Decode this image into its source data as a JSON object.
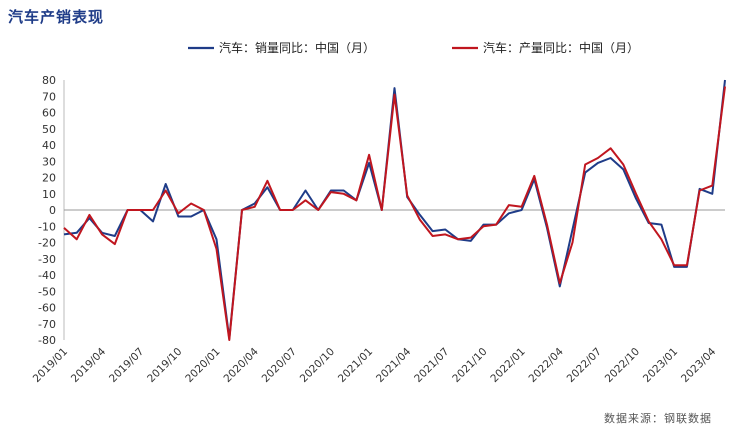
{
  "title": "汽车产销表现",
  "source": "数据来源：钢联数据",
  "colors": {
    "sales": "#1f3c88",
    "production": "#c0161f"
  },
  "chart_data": {
    "type": "line",
    "title": "汽车产销表现",
    "ylim": [
      -80,
      80
    ],
    "yticks": [
      80,
      70,
      60,
      50,
      40,
      30,
      20,
      10,
      0,
      -10,
      -20,
      -30,
      -40,
      -50,
      -60,
      -70,
      -80
    ],
    "xlabels": [
      "2019/01",
      "2019/04",
      "2019/07",
      "2019/10",
      "2020/01",
      "2020/04",
      "2020/07",
      "2020/10",
      "2021/01",
      "2021/04",
      "2021/07",
      "2021/10",
      "2022/01",
      "2022/04",
      "2022/07",
      "2022/10",
      "2023/01",
      "2023/04"
    ],
    "grid": false,
    "legend": "top",
    "x": [
      "2019/01",
      "2019/02",
      "2019/03",
      "2019/04",
      "2019/05",
      "2019/06",
      "2019/07",
      "2019/08",
      "2019/09",
      "2019/10",
      "2019/11",
      "2019/12",
      "2020/01",
      "2020/02",
      "2020/03",
      "2020/04",
      "2020/05",
      "2020/06",
      "2020/07",
      "2020/08",
      "2020/09",
      "2020/10",
      "2020/11",
      "2020/12",
      "2021/01",
      "2021/02",
      "2021/03",
      "2021/04",
      "2021/05",
      "2021/06",
      "2021/07",
      "2021/08",
      "2021/09",
      "2021/10",
      "2021/11",
      "2021/12",
      "2022/01",
      "2022/02",
      "2022/03",
      "2022/04",
      "2022/05",
      "2022/06",
      "2022/07",
      "2022/08",
      "2022/09",
      "2022/10",
      "2022/11",
      "2022/12",
      "2023/01",
      "2023/02",
      "2023/03",
      "2023/04",
      "2023/05"
    ],
    "series": [
      {
        "name": "汽车：销量同比：中国（月）",
        "color": "#1f3c88",
        "values": [
          -15,
          -14,
          -5,
          -14,
          -16,
          0,
          0,
          -7,
          16,
          -4,
          -4,
          0,
          -18,
          -79,
          0,
          4,
          14,
          0,
          0,
          12,
          0,
          12,
          12,
          6,
          29,
          0,
          75,
          8,
          -3,
          -13,
          -12,
          -18,
          -19,
          -9,
          -9,
          -2,
          0,
          19,
          -11,
          -47,
          -12,
          23,
          29,
          32,
          25,
          7,
          -8,
          -9,
          -35,
          -35,
          13,
          10,
          80
        ]
      },
      {
        "name": "汽车：产量同比：中国（月）",
        "color": "#c0161f",
        "values": [
          -11,
          -18,
          -3,
          -15,
          -21,
          0,
          0,
          0,
          12,
          -2,
          4,
          0,
          -24,
          -80,
          0,
          2,
          18,
          0,
          0,
          6,
          0,
          11,
          10,
          6,
          34,
          0,
          71,
          9,
          -6,
          -16,
          -15,
          -18,
          -17,
          -10,
          -9,
          3,
          2,
          21,
          -9,
          -45,
          -20,
          28,
          32,
          38,
          28,
          10,
          -7,
          -18,
          -34,
          -34,
          12,
          15,
          76
        ]
      }
    ]
  }
}
